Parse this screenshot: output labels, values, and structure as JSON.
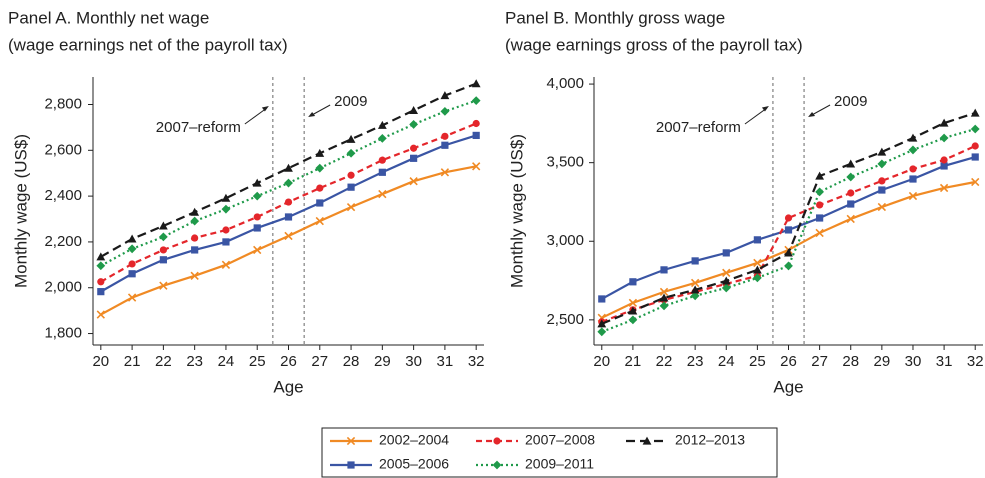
{
  "chart_data": [
    {
      "type": "line",
      "title": "Panel A. Monthly net wage",
      "subtitle": "(wage earnings net of the payroll tax)",
      "xlabel": "Age",
      "ylabel": "Monthly wage (US$)",
      "x": [
        20,
        21,
        22,
        23,
        24,
        25,
        26,
        27,
        28,
        29,
        30,
        31,
        32
      ],
      "xlim": [
        19.75,
        32.25
      ],
      "xticks": [
        20,
        21,
        22,
        23,
        24,
        25,
        26,
        27,
        28,
        29,
        30,
        31,
        32
      ],
      "ylim": [
        1750,
        2920
      ],
      "yticks": [
        {
          "value": 1800,
          "label": "1,800"
        },
        {
          "value": 2000,
          "label": "2,000"
        },
        {
          "value": 2200,
          "label": "2,200"
        },
        {
          "value": 2400,
          "label": "2,400"
        },
        {
          "value": 2600,
          "label": "2,600"
        },
        {
          "value": 2800,
          "label": "2,800"
        }
      ],
      "annotations": [
        {
          "text": "2007–reform",
          "x": 25.5
        },
        {
          "text": "2009",
          "x": 26.5
        }
      ],
      "series": [
        {
          "name": "2002–2004",
          "color": "#f08a24",
          "marker": "x",
          "linestyle": "solid",
          "values": [
            1883,
            1957,
            2009,
            2052,
            2100,
            2165,
            2226,
            2291,
            2352,
            2409,
            2465,
            2504,
            2530
          ]
        },
        {
          "name": "2005–2006",
          "color": "#3a55a4",
          "marker": "square",
          "linestyle": "solid",
          "values": [
            1983,
            2061,
            2122,
            2165,
            2200,
            2261,
            2309,
            2370,
            2439,
            2504,
            2565,
            2622,
            2665
          ]
        },
        {
          "name": "2007–2008",
          "color": "#e4262b",
          "marker": "circle",
          "linestyle": "dashed",
          "values": [
            2026,
            2104,
            2165,
            2217,
            2252,
            2309,
            2374,
            2435,
            2491,
            2557,
            2609,
            2661,
            2717
          ]
        },
        {
          "name": "2009–2011",
          "color": "#1f9a4a",
          "marker": "diamond",
          "linestyle": "dotted",
          "values": [
            2096,
            2170,
            2222,
            2291,
            2343,
            2400,
            2457,
            2522,
            2587,
            2652,
            2713,
            2770,
            2817
          ]
        },
        {
          "name": "2012–2013",
          "color": "#1a1a1a",
          "marker": "triangle",
          "linestyle": "longdash",
          "values": [
            2135,
            2213,
            2270,
            2330,
            2391,
            2457,
            2522,
            2587,
            2648,
            2709,
            2774,
            2839,
            2891
          ]
        }
      ]
    },
    {
      "type": "line",
      "title": "Panel B. Monthly gross wage",
      "subtitle": "(wage earnings gross of the payroll tax)",
      "xlabel": "Age",
      "ylabel": "Monthly wage (US$)",
      "x": [
        20,
        21,
        22,
        23,
        24,
        25,
        26,
        27,
        28,
        29,
        30,
        31,
        32
      ],
      "xlim": [
        19.75,
        32.25
      ],
      "xticks": [
        20,
        21,
        22,
        23,
        24,
        25,
        26,
        27,
        28,
        29,
        30,
        31,
        32
      ],
      "ylim": [
        2340,
        4045
      ],
      "yticks": [
        {
          "value": 2500,
          "label": "2,500"
        },
        {
          "value": 3000,
          "label": "3,000"
        },
        {
          "value": 3500,
          "label": "3,500"
        },
        {
          "value": 4000,
          "label": "4,000"
        }
      ],
      "annotations": [
        {
          "text": "2007–reform",
          "x": 25.5
        },
        {
          "text": "2009",
          "x": 26.5
        }
      ],
      "series": [
        {
          "color": "#f08a24",
          "marker": "x",
          "linestyle": "solid",
          "values": [
            2513,
            2608,
            2678,
            2735,
            2799,
            2862,
            2945,
            3053,
            3142,
            3218,
            3288,
            3339,
            3377
          ]
        },
        {
          "color": "#3a55a4",
          "marker": "square",
          "linestyle": "solid",
          "values": [
            2633,
            2742,
            2818,
            2875,
            2926,
            3009,
            3072,
            3148,
            3237,
            3326,
            3396,
            3479,
            3536
          ]
        },
        {
          "color": "#e4262b",
          "marker": "circle",
          "linestyle": "dashed",
          "values": [
            2487,
            2564,
            2627,
            2678,
            2729,
            2780,
            3148,
            3231,
            3307,
            3384,
            3460,
            3517,
            3606
          ]
        },
        {
          "color": "#1f9a4a",
          "marker": "diamond",
          "linestyle": "dotted",
          "values": [
            2424,
            2500,
            2589,
            2653,
            2703,
            2767,
            2843,
            3314,
            3409,
            3492,
            3581,
            3657,
            3714
          ]
        },
        {
          "color": "#1a1a1a",
          "marker": "triangle",
          "linestyle": "longdash",
          "values": [
            2475,
            2557,
            2640,
            2691,
            2748,
            2818,
            2926,
            3415,
            3492,
            3568,
            3657,
            3752,
            3816
          ]
        }
      ]
    }
  ]
}
